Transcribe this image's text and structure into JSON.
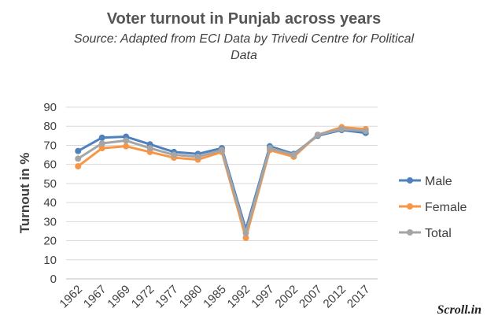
{
  "chart_data": {
    "type": "line",
    "title": "Voter turnout in Punjab across years",
    "subtitle_line1": "Source: Adapted from ECI Data by Trivedi Centre for Political",
    "subtitle_line2": "Data",
    "xlabel": "",
    "ylabel": "Turnout in %",
    "ylim": [
      0,
      90
    ],
    "yticks": [
      0,
      10,
      20,
      30,
      40,
      50,
      60,
      70,
      80,
      90
    ],
    "grid": true,
    "legend_position": "right",
    "categories": [
      "1962",
      "1967",
      "1969",
      "1972",
      "1977",
      "1980",
      "1985",
      "1992",
      "1997",
      "2002",
      "2007",
      "2012",
      "2017"
    ],
    "series": [
      {
        "name": "Male",
        "color": "#4f81bd",
        "values": [
          67,
          74,
          74.5,
          70.5,
          66.5,
          65.5,
          68.5,
          26,
          69.5,
          65.5,
          75,
          78,
          76.5
        ]
      },
      {
        "name": "Female",
        "color": "#f79646",
        "values": [
          59,
          68.5,
          69.5,
          66.5,
          63.5,
          62.5,
          66.5,
          21.5,
          67.5,
          64,
          75.5,
          79.5,
          78.5
        ]
      },
      {
        "name": "Total",
        "color": "#a5a5a5",
        "values": [
          63,
          71,
          72.5,
          68.5,
          65,
          64,
          67.5,
          24,
          68.5,
          65,
          75.5,
          78.5,
          77.5
        ]
      }
    ]
  },
  "watermark": "Scroll.in"
}
